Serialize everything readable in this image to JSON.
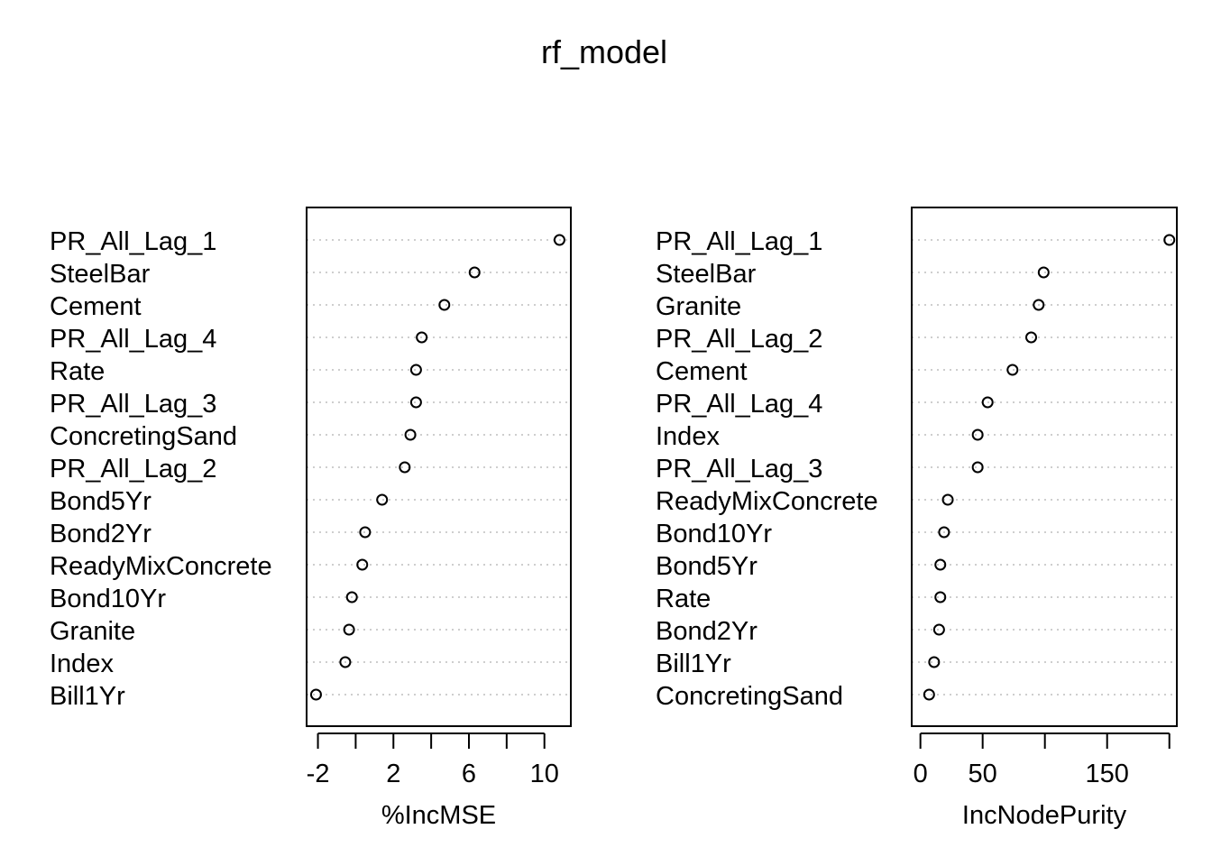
{
  "chart_data": {
    "type": "scatter",
    "title": "rf_model",
    "panels": [
      {
        "xlabel": "%IncMSE",
        "categories": [
          "PR_All_Lag_1",
          "SteelBar",
          "Cement",
          "PR_All_Lag_4",
          "Rate",
          "PR_All_Lag_3",
          "ConcretingSand",
          "PR_All_Lag_2",
          "Bond5Yr",
          "Bond2Yr",
          "ReadyMixConcrete",
          "Bond10Yr",
          "Granite",
          "Index",
          "Bill1Yr"
        ],
        "values": [
          10.8,
          6.3,
          4.7,
          3.5,
          3.2,
          3.2,
          2.9,
          2.6,
          1.4,
          0.5,
          0.35,
          -0.2,
          -0.35,
          -0.55,
          -2.1
        ],
        "xlim": [
          -2.6,
          11.4
        ],
        "ticks": [
          -2,
          0,
          2,
          4,
          6,
          8,
          10
        ],
        "tick_labels": [
          "-2",
          "",
          "2",
          "",
          "6",
          "",
          "10"
        ],
        "grid": "dotted"
      },
      {
        "xlabel": "IncNodePurity",
        "categories": [
          "PR_All_Lag_1",
          "SteelBar",
          "Granite",
          "PR_All_Lag_2",
          "Cement",
          "PR_All_Lag_4",
          "Index",
          "PR_All_Lag_3",
          "ReadyMixConcrete",
          "Bond10Yr",
          "Bond5Yr",
          "Rate",
          "Bond2Yr",
          "Bill1Yr",
          "ConcretingSand"
        ],
        "values": [
          200,
          99,
          95,
          89,
          74,
          54,
          46,
          46,
          22,
          19,
          16,
          16,
          15,
          11,
          7
        ],
        "xlim": [
          -7,
          206
        ],
        "ticks": [
          0,
          50,
          100,
          150,
          200
        ],
        "tick_labels": [
          "0",
          "50",
          "",
          "150",
          ""
        ],
        "grid": "dotted"
      }
    ]
  }
}
